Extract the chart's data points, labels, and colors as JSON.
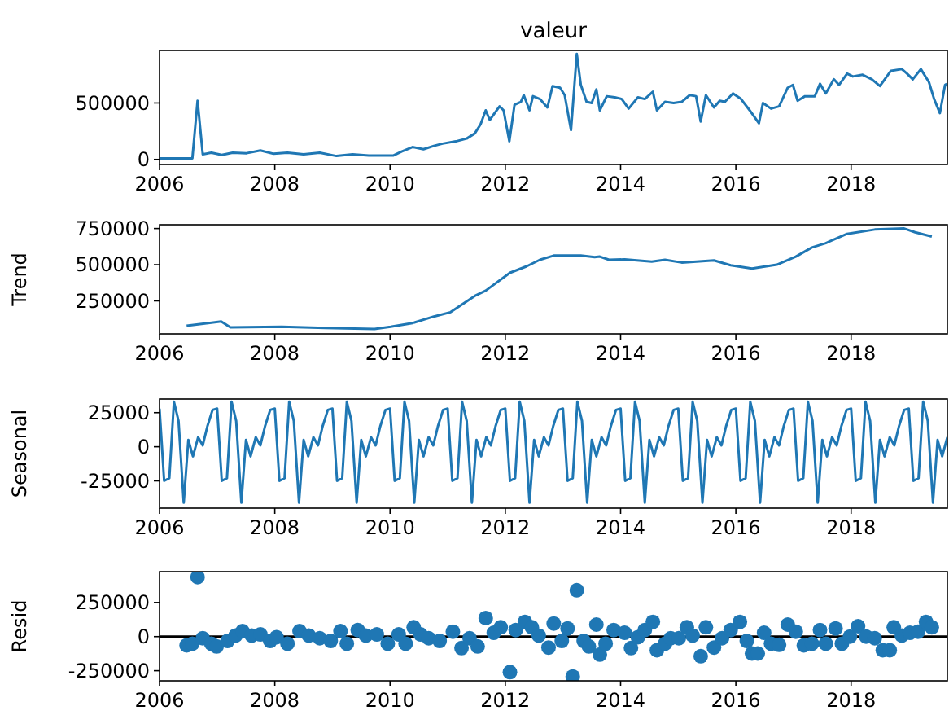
{
  "chart_data": [
    {
      "type": "line",
      "title": "valeur",
      "xlim": [
        2006,
        2019.67
      ],
      "xticks": [
        2006,
        2008,
        2010,
        2012,
        2014,
        2016,
        2018
      ],
      "ylim": [
        -45000,
        965000
      ],
      "yticks": [
        0,
        500000
      ],
      "series": [
        {
          "color": "#1f77b4",
          "x": [
            2006,
            2006.57,
            2006.66,
            2006.75,
            2006.9,
            2007.08,
            2007.27,
            2007.51,
            2007.75,
            2007.98,
            2008.22,
            2008.5,
            2008.78,
            2009.07,
            2009.35,
            2009.63,
            2010.06,
            2010.2,
            2010.39,
            2010.58,
            2010.76,
            2010.91,
            2011.14,
            2011.33,
            2011.47,
            2011.57,
            2011.66,
            2011.73,
            2011.9,
            2011.97,
            2012.07,
            2012.16,
            2012.27,
            2012.32,
            2012.42,
            2012.48,
            2012.6,
            2012.73,
            2012.82,
            2012.95,
            2013.03,
            2013.14,
            2013.24,
            2013.31,
            2013.41,
            2013.5,
            2013.58,
            2013.64,
            2013.76,
            2013.9,
            2014.02,
            2014.14,
            2014.3,
            2014.42,
            2014.56,
            2014.63,
            2014.77,
            2014.92,
            2015.06,
            2015.2,
            2015.31,
            2015.39,
            2015.48,
            2015.62,
            2015.72,
            2015.81,
            2015.95,
            2016.09,
            2016.24,
            2016.4,
            2016.47,
            2016.61,
            2016.75,
            2016.9,
            2016.99,
            2017.07,
            2017.2,
            2017.37,
            2017.46,
            2017.56,
            2017.7,
            2017.79,
            2017.93,
            2018.03,
            2018.2,
            2018.36,
            2018.5,
            2018.69,
            2018.88,
            2018.97,
            2019.07,
            2019.21,
            2019.35,
            2019.44,
            2019.54,
            2019.63,
            2019.66
          ],
          "values": [
            10000,
            10000,
            520000,
            45000,
            60000,
            40000,
            60000,
            55000,
            80000,
            50000,
            60000,
            45000,
            60000,
            30000,
            45000,
            35000,
            35000,
            70000,
            110000,
            90000,
            120000,
            140000,
            160000,
            185000,
            230000,
            310000,
            435000,
            350000,
            470000,
            435000,
            160000,
            485000,
            510000,
            570000,
            435000,
            560000,
            535000,
            460000,
            650000,
            635000,
            570000,
            260000,
            935000,
            660000,
            510000,
            500000,
            620000,
            435000,
            560000,
            550000,
            535000,
            450000,
            550000,
            535000,
            600000,
            435000,
            510000,
            500000,
            510000,
            570000,
            560000,
            335000,
            570000,
            460000,
            520000,
            510000,
            585000,
            535000,
            435000,
            320000,
            500000,
            450000,
            470000,
            635000,
            660000,
            520000,
            560000,
            560000,
            670000,
            585000,
            710000,
            660000,
            760000,
            735000,
            750000,
            710000,
            650000,
            785000,
            800000,
            760000,
            710000,
            800000,
            685000,
            535000,
            410000,
            660000,
            670000
          ]
        }
      ]
    },
    {
      "type": "line",
      "ylabel": "Trend",
      "xlim": [
        2006,
        2019.67
      ],
      "xticks": [
        2006,
        2008,
        2010,
        2012,
        2014,
        2016,
        2018
      ],
      "ylim": [
        22000,
        776000
      ],
      "yticks": [
        250000,
        500000,
        750000
      ],
      "series": [
        {
          "color": "#1f77b4",
          "x": [
            2006.47,
            2007.07,
            2007.23,
            2008.12,
            2008.88,
            2009.73,
            2010.01,
            2010.39,
            2010.76,
            2011.05,
            2011.47,
            2011.66,
            2012.08,
            2012.37,
            2012.6,
            2012.84,
            2013.31,
            2013.55,
            2013.64,
            2013.8,
            2014.07,
            2014.54,
            2014.77,
            2015.06,
            2015.62,
            2015.91,
            2016.28,
            2016.71,
            2017.04,
            2017.32,
            2017.56,
            2017.93,
            2018.41,
            2018.92,
            2019.11,
            2019.4
          ],
          "values": [
            78000,
            108000,
            67000,
            71000,
            63000,
            56000,
            71000,
            97000,
            142000,
            172000,
            284000,
            321000,
            444000,
            489000,
            534000,
            563000,
            563000,
            552000,
            556000,
            534000,
            537000,
            522000,
            534000,
            515000,
            530000,
            496000,
            474000,
            500000,
            556000,
            619000,
            649000,
            713000,
            743000,
            750000,
            724000,
            694000
          ]
        }
      ]
    },
    {
      "type": "line",
      "ylabel": "Seasonal",
      "xlim": [
        2006,
        2019.67
      ],
      "xticks": [
        2006,
        2008,
        2010,
        2012,
        2014,
        2016,
        2018
      ],
      "ylim": [
        -45000,
        35000
      ],
      "yticks": [
        -25000,
        0,
        25000
      ],
      "series": [
        {
          "color": "#1f77b4",
          "x": [
            2006,
            2006.08,
            2006.17,
            2006.25,
            2006.33,
            2006.42,
            2006.5,
            2006.58,
            2006.67,
            2006.75,
            2006.83,
            2006.92,
            2007,
            2007.08,
            2007.17,
            2007.25,
            2007.33,
            2007.42,
            2007.5,
            2007.58,
            2007.67,
            2007.75,
            2007.83,
            2007.92,
            2008,
            2008.08,
            2008.17,
            2008.25,
            2008.33,
            2008.42,
            2008.5,
            2008.58,
            2008.67,
            2008.75,
            2008.83,
            2008.92,
            2009,
            2009.08,
            2009.17,
            2009.25,
            2009.33,
            2009.42,
            2009.5,
            2009.58,
            2009.67,
            2009.75,
            2009.83,
            2009.92,
            2010,
            2010.08,
            2010.17,
            2010.25,
            2010.33,
            2010.42,
            2010.5,
            2010.58,
            2010.67,
            2010.75,
            2010.83,
            2010.92,
            2011,
            2011.08,
            2011.17,
            2011.25,
            2011.33,
            2011.42,
            2011.5,
            2011.58,
            2011.67,
            2011.75,
            2011.83,
            2011.92,
            2012,
            2012.08,
            2012.17,
            2012.25,
            2012.33,
            2012.42,
            2012.5,
            2012.58,
            2012.67,
            2012.75,
            2012.83,
            2012.92,
            2013,
            2013.08,
            2013.17,
            2013.25,
            2013.33,
            2013.42,
            2013.5,
            2013.58,
            2013.67,
            2013.75,
            2013.83,
            2013.92,
            2014,
            2014.08,
            2014.17,
            2014.25,
            2014.33,
            2014.42,
            2014.5,
            2014.58,
            2014.67,
            2014.75,
            2014.83,
            2014.92,
            2015,
            2015.08,
            2015.17,
            2015.25,
            2015.33,
            2015.42,
            2015.5,
            2015.58,
            2015.67,
            2015.75,
            2015.83,
            2015.92,
            2016,
            2016.08,
            2016.17,
            2016.25,
            2016.33,
            2016.42,
            2016.5,
            2016.58,
            2016.67,
            2016.75,
            2016.83,
            2016.92,
            2017,
            2017.08,
            2017.17,
            2017.25,
            2017.33,
            2017.42,
            2017.5,
            2017.58,
            2017.67,
            2017.75,
            2017.83,
            2017.92,
            2018,
            2018.08,
            2018.17,
            2018.25,
            2018.33,
            2018.42,
            2018.5,
            2018.58,
            2018.67,
            2018.75,
            2018.83,
            2018.92,
            2019,
            2019.08,
            2019.17,
            2019.25,
            2019.33,
            2019.42,
            2019.5,
            2019.58,
            2019.67
          ],
          "values": [
            28000,
            -25000,
            -23000,
            33000,
            19000,
            -41000,
            5000,
            -7000,
            7000,
            1000,
            15000,
            27000,
            28000,
            -25000,
            -23000,
            33000,
            19000,
            -41000,
            5000,
            -7000,
            7000,
            1000,
            15000,
            27000,
            28000,
            -25000,
            -23000,
            33000,
            19000,
            -41000,
            5000,
            -7000,
            7000,
            1000,
            15000,
            27000,
            28000,
            -25000,
            -23000,
            33000,
            19000,
            -41000,
            5000,
            -7000,
            7000,
            1000,
            15000,
            27000,
            28000,
            -25000,
            -23000,
            33000,
            19000,
            -41000,
            5000,
            -7000,
            7000,
            1000,
            15000,
            27000,
            28000,
            -25000,
            -23000,
            33000,
            19000,
            -41000,
            5000,
            -7000,
            7000,
            1000,
            15000,
            27000,
            28000,
            -25000,
            -23000,
            33000,
            19000,
            -41000,
            5000,
            -7000,
            7000,
            1000,
            15000,
            27000,
            28000,
            -25000,
            -23000,
            33000,
            19000,
            -41000,
            5000,
            -7000,
            7000,
            1000,
            15000,
            27000,
            28000,
            -25000,
            -23000,
            33000,
            19000,
            -41000,
            5000,
            -7000,
            7000,
            1000,
            15000,
            27000,
            28000,
            -25000,
            -23000,
            33000,
            19000,
            -41000,
            5000,
            -7000,
            7000,
            1000,
            15000,
            27000,
            28000,
            -25000,
            -23000,
            33000,
            19000,
            -41000,
            5000,
            -7000,
            7000,
            1000,
            15000,
            27000,
            28000,
            -25000,
            -23000,
            33000,
            19000,
            -41000,
            5000,
            -7000,
            7000,
            1000,
            15000,
            27000,
            28000,
            -25000,
            -23000,
            33000,
            19000,
            -41000,
            5000,
            -7000,
            7000,
            1000,
            15000,
            27000,
            28000,
            -25000,
            -23000,
            33000,
            19000,
            -41000,
            5000,
            -7000,
            7000
          ]
        }
      ]
    },
    {
      "type": "scatter",
      "ylabel": "Resid",
      "marker": "circle",
      "xlim": [
        2006,
        2019.67
      ],
      "xticks": [
        2006,
        2008,
        2010,
        2012,
        2014,
        2016,
        2018
      ],
      "ylim": [
        -324000,
        476000
      ],
      "yticks": [
        -250000,
        0,
        250000
      ],
      "ref_lines": [
        {
          "axis": "y",
          "value": 0,
          "color": "#000000"
        }
      ],
      "series": [
        {
          "color": "#1f77b4",
          "x": [
            2006.47,
            2006.57,
            2006.66,
            2006.75,
            2006.9,
            2006.99,
            2007.18,
            2007.32,
            2007.44,
            2007.6,
            2007.75,
            2007.92,
            2008.03,
            2008.22,
            2008.43,
            2008.59,
            2008.78,
            2008.97,
            2009.14,
            2009.25,
            2009.44,
            2009.58,
            2009.77,
            2009.96,
            2010.15,
            2010.27,
            2010.41,
            2010.53,
            2010.67,
            2010.86,
            2011.09,
            2011.24,
            2011.38,
            2011.52,
            2011.66,
            2011.8,
            2011.92,
            2012.08,
            2012.18,
            2012.34,
            2012.46,
            2012.58,
            2012.75,
            2012.84,
            2012.98,
            2013.08,
            2013.17,
            2013.24,
            2013.36,
            2013.45,
            2013.58,
            2013.64,
            2013.74,
            2013.88,
            2014.07,
            2014.18,
            2014.3,
            2014.42,
            2014.56,
            2014.63,
            2014.77,
            2014.87,
            2015.01,
            2015.15,
            2015.25,
            2015.39,
            2015.48,
            2015.62,
            2015.76,
            2015.91,
            2016.07,
            2016.19,
            2016.28,
            2016.38,
            2016.49,
            2016.61,
            2016.75,
            2016.9,
            2017.04,
            2017.18,
            2017.32,
            2017.46,
            2017.56,
            2017.73,
            2017.84,
            2017.98,
            2018.12,
            2018.26,
            2018.41,
            2018.55,
            2018.67,
            2018.74,
            2018.88,
            2019.02,
            2019.16,
            2019.3,
            2019.4
          ],
          "values": [
            -64000,
            -52000,
            436000,
            -12000,
            -52000,
            -72000,
            -32000,
            8000,
            40000,
            8000,
            16000,
            -32000,
            -4000,
            -52000,
            40000,
            8000,
            -12000,
            -32000,
            40000,
            -52000,
            48000,
            8000,
            16000,
            -52000,
            16000,
            -52000,
            68000,
            16000,
            -12000,
            -32000,
            36000,
            -84000,
            -12000,
            -72000,
            136000,
            28000,
            68000,
            -260000,
            48000,
            108000,
            68000,
            8000,
            -80000,
            96000,
            -32000,
            60000,
            -292000,
            340000,
            -32000,
            -72000,
            88000,
            -132000,
            -52000,
            48000,
            28000,
            -84000,
            -4000,
            48000,
            108000,
            -100000,
            -52000,
            -12000,
            -12000,
            68000,
            8000,
            -144000,
            68000,
            -80000,
            -12000,
            48000,
            108000,
            -32000,
            -124000,
            -124000,
            28000,
            -52000,
            -60000,
            88000,
            36000,
            -64000,
            -52000,
            48000,
            -52000,
            60000,
            -52000,
            0,
            76000,
            0,
            -12000,
            -100000,
            -100000,
            68000,
            8000,
            28000,
            36000,
            108000,
            68000
          ]
        }
      ]
    }
  ]
}
